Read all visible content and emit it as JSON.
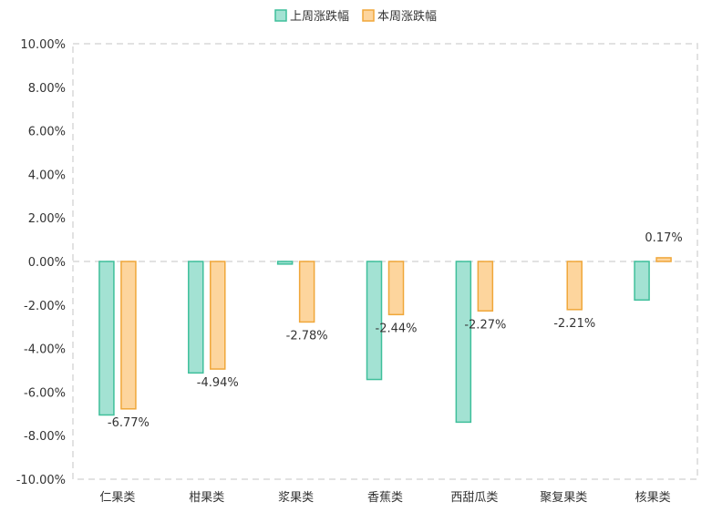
{
  "colors": {
    "last_week_fill": "#a3e2d3",
    "last_week_stroke": "#3fbf9b",
    "this_week_fill": "#fdd59d",
    "this_week_stroke": "#f0a73a",
    "grid": "#d9d9d9",
    "text": "#333333"
  },
  "chart_data": {
    "type": "bar",
    "categories": [
      "仁果类",
      "柑果类",
      "浆果类",
      "香蕉类",
      "西甜瓜类",
      "聚复果类",
      "核果类"
    ],
    "series": [
      {
        "name": "上周涨跌幅",
        "values": [
          -7.05,
          -5.12,
          -0.12,
          -5.42,
          -7.38,
          0,
          -1.77
        ]
      },
      {
        "name": "本周涨跌幅",
        "values": [
          -6.77,
          -4.94,
          -2.78,
          -2.44,
          -2.27,
          -2.21,
          0.17
        ]
      }
    ],
    "data_labels": [
      "-6.77%",
      "-4.94%",
      "-2.78%",
      "-2.44%",
      "-2.27%",
      "-2.21%",
      "0.17%"
    ],
    "y_ticks": [
      "10.00%",
      "8.00%",
      "6.00%",
      "4.00%",
      "2.00%",
      "0.00%",
      "-2.00%",
      "-4.00%",
      "-6.00%",
      "-8.00%",
      "-10.00%"
    ],
    "ylim": [
      -10,
      10
    ],
    "grid": true,
    "legend": "top-center",
    "title": "",
    "xlabel": "",
    "ylabel": ""
  }
}
